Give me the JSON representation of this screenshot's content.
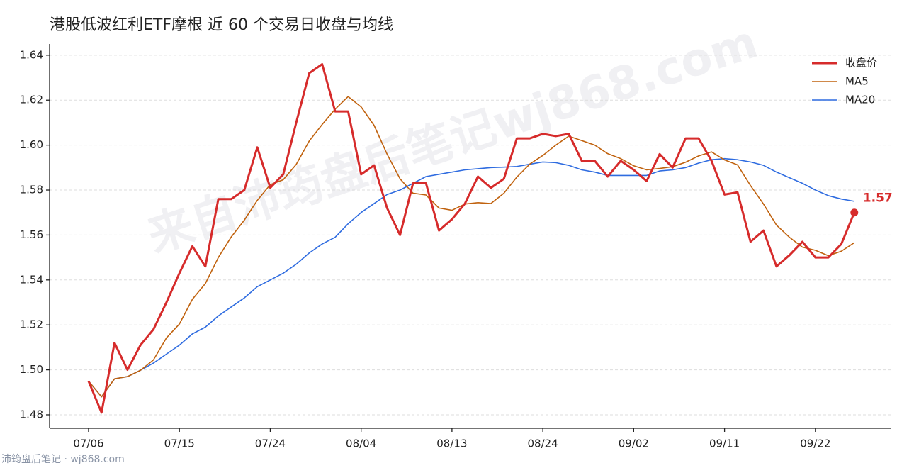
{
  "chart_data": {
    "type": "line",
    "title": "港股低波红利ETF摩根 近 60 个交易日收盘与均线",
    "watermark": "来自沛筠盘后笔记wj868.com",
    "footer": "沛筠盘后笔记 · wj868.com",
    "categories": [
      "07/06",
      null,
      null,
      null,
      null,
      null,
      null,
      "07/15",
      null,
      null,
      null,
      null,
      null,
      null,
      "07/24",
      null,
      null,
      null,
      null,
      null,
      null,
      "08/04",
      null,
      null,
      null,
      null,
      null,
      null,
      "08/13",
      null,
      null,
      null,
      null,
      null,
      null,
      "08/24",
      null,
      null,
      null,
      null,
      null,
      null,
      "09/02",
      null,
      null,
      null,
      null,
      null,
      null,
      "09/11",
      null,
      null,
      null,
      null,
      null,
      null,
      "09/22",
      null,
      null,
      null
    ],
    "series": [
      {
        "name": "收盘价",
        "color": "#d62b2b",
        "width": 3,
        "values": [
          1.495,
          1.481,
          1.512,
          1.5,
          1.511,
          1.518,
          1.53,
          1.543,
          1.555,
          1.546,
          1.576,
          1.576,
          1.58,
          1.599,
          1.581,
          1.587,
          1.61,
          1.632,
          1.636,
          1.615,
          1.615,
          1.587,
          1.591,
          1.572,
          1.56,
          1.583,
          1.583,
          1.562,
          1.567,
          1.574,
          1.586,
          1.581,
          1.585,
          1.603,
          1.603,
          1.605,
          1.604,
          1.605,
          1.593,
          1.593,
          1.586,
          1.593,
          1.589,
          1.584,
          1.596,
          1.59,
          1.603,
          1.603,
          1.593,
          1.578,
          1.579,
          1.557,
          1.562,
          1.546,
          1.551,
          1.557,
          1.55,
          1.55,
          1.556,
          1.57
        ],
        "value_labels": [
          null,
          null,
          null,
          null,
          null,
          null,
          null,
          null,
          null,
          null,
          null,
          null,
          null,
          null,
          null,
          null,
          null,
          null,
          null,
          null,
          null,
          null,
          null,
          null,
          null,
          null,
          null,
          null,
          null,
          null,
          null,
          null,
          null,
          null,
          null,
          null,
          null,
          null,
          null,
          null,
          null,
          null,
          null,
          null,
          null,
          null,
          null,
          null,
          null,
          null,
          null,
          null,
          null,
          null,
          null,
          null,
          null,
          null,
          null,
          "1.57"
        ]
      },
      {
        "name": "MA5",
        "color": "#c0620e",
        "width": 1.6,
        "values": [
          1.495,
          1.488,
          1.496,
          1.497,
          1.4998,
          1.5044,
          1.5142,
          1.5204,
          1.5314,
          1.5384,
          1.55,
          1.5592,
          1.5666,
          1.5754,
          1.5824,
          1.5846,
          1.5914,
          1.6018,
          1.6092,
          1.616,
          1.6216,
          1.617,
          1.6088,
          1.596,
          1.585,
          1.5786,
          1.5778,
          1.572,
          1.571,
          1.5738,
          1.5744,
          1.574,
          1.5786,
          1.5858,
          1.5916,
          1.5954,
          1.6,
          1.604,
          1.602,
          1.6,
          1.5962,
          1.594,
          1.5908,
          1.589,
          1.5896,
          1.5904,
          1.5924,
          1.5952,
          1.597,
          1.5934,
          1.5912,
          1.582,
          1.5738,
          1.5644,
          1.559,
          1.5546,
          1.5532,
          1.5508,
          1.5528,
          1.5566
        ]
      },
      {
        "name": "MA20",
        "color": "#2f6ce0",
        "width": 1.6,
        "values": [
          1.495,
          1.488,
          1.496,
          1.497,
          1.4998,
          1.503,
          1.507,
          1.511,
          1.516,
          1.519,
          1.524,
          1.528,
          1.532,
          1.537,
          1.54,
          1.543,
          1.547,
          1.552,
          1.556,
          1.559,
          1.565,
          1.57,
          1.574,
          1.578,
          1.58,
          1.583,
          1.586,
          1.587,
          1.588,
          1.589,
          1.5895,
          1.59,
          1.5902,
          1.5905,
          1.5915,
          1.5925,
          1.5922,
          1.591,
          1.589,
          1.588,
          1.5865,
          1.5865,
          1.5865,
          1.5865,
          1.5885,
          1.589,
          1.59,
          1.592,
          1.5935,
          1.594,
          1.5935,
          1.5925,
          1.591,
          1.588,
          1.5855,
          1.583,
          1.58,
          1.5775,
          1.576,
          1.575
        ]
      }
    ],
    "ylim": [
      1.474,
      1.645
    ],
    "yticks": [
      1.48,
      {
        "value": 1.5,
        "label": "1.50"
      },
      1.52,
      1.54,
      1.56,
      1.58,
      {
        "value": 1.6,
        "label": "1.60"
      },
      1.62,
      1.64
    ],
    "grid": true,
    "legend": "upper right"
  }
}
